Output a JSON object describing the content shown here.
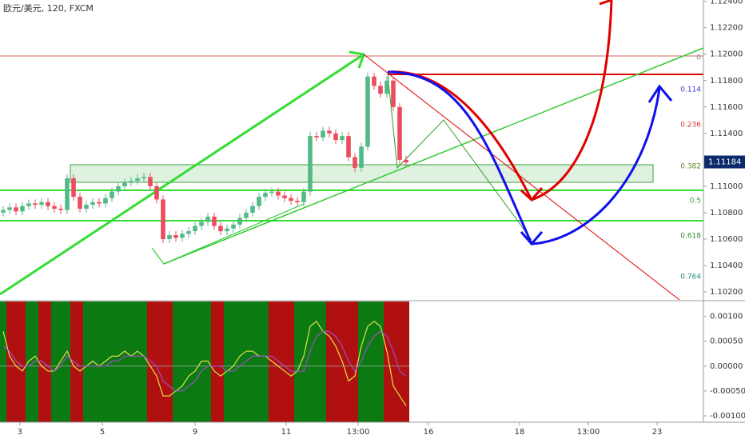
{
  "chart_data": {
    "type": "candlestick",
    "title": "欧元/美元, 120, FXCM",
    "colors": {
      "up": "#53b987",
      "down": "#eb4d5c"
    },
    "open": [
      1.108,
      1.1082,
      1.1084,
      1.1081,
      1.1085,
      1.1087,
      1.1086,
      1.1088,
      1.1085,
      1.1083,
      1.1082,
      1.1106,
      1.1092,
      1.1083,
      1.1086,
      1.1088,
      1.1087,
      1.1091,
      1.1096,
      1.11,
      1.1103,
      1.1104,
      1.1106,
      1.1107,
      1.11,
      1.109,
      1.106,
      1.1063,
      1.1061,
      1.1064,
      1.1066,
      1.107,
      1.1073,
      1.1077,
      1.107,
      1.1066,
      1.1068,
      1.1071,
      1.1076,
      1.108,
      1.1085,
      1.1092,
      1.1095,
      1.1096,
      1.1093,
      1.1091,
      1.1089,
      1.1088,
      1.1096,
      1.1138,
      1.1137,
      1.1142,
      1.114,
      1.1135,
      1.1138,
      1.1122,
      1.1114,
      1.113,
      1.1183,
      1.1176,
      1.117,
      1.118,
      1.116,
      1.112
    ],
    "high": [
      1.1085,
      1.1087,
      1.1087,
      1.1088,
      1.109,
      1.109,
      1.1091,
      1.1091,
      1.1088,
      1.1086,
      1.1109,
      1.1109,
      1.1095,
      1.1089,
      1.1091,
      1.1091,
      1.1094,
      1.1099,
      1.1103,
      1.1106,
      1.1107,
      1.1109,
      1.111,
      1.111,
      1.1103,
      1.1093,
      1.1066,
      1.1066,
      1.1067,
      1.1069,
      1.1073,
      1.1076,
      1.108,
      1.108,
      1.1073,
      1.1071,
      1.1074,
      1.1079,
      1.1083,
      1.1088,
      1.1095,
      1.1098,
      1.1099,
      1.1099,
      1.1096,
      1.1094,
      1.1092,
      1.1099,
      1.1141,
      1.1141,
      1.1145,
      1.1145,
      1.1143,
      1.1141,
      1.1141,
      1.1125,
      1.1133,
      1.1186,
      1.1186,
      1.1179,
      1.1183,
      1.1183,
      1.1163,
      1.1123
    ],
    "low": [
      1.1077,
      1.1079,
      1.1078,
      1.1078,
      1.1082,
      1.1083,
      1.1083,
      1.1082,
      1.108,
      1.1079,
      1.1079,
      1.1089,
      1.108,
      1.108,
      1.1083,
      1.1084,
      1.1084,
      1.1088,
      1.1093,
      1.1097,
      1.11,
      1.1101,
      1.1103,
      1.1097,
      1.1087,
      1.1057,
      1.1057,
      1.1058,
      1.1058,
      1.1061,
      1.1063,
      1.1067,
      1.107,
      1.1067,
      1.1063,
      1.1063,
      1.1065,
      1.1068,
      1.1073,
      1.1077,
      1.1082,
      1.1089,
      1.1092,
      1.109,
      1.1088,
      1.1086,
      1.1085,
      1.1085,
      1.1093,
      1.1134,
      1.1134,
      1.1137,
      1.1132,
      1.1132,
      1.1119,
      1.1111,
      1.1111,
      1.1127,
      1.1173,
      1.1167,
      1.1167,
      1.1157,
      1.1117,
      1.1115
    ],
    "close": [
      1.1082,
      1.1084,
      1.1081,
      1.1085,
      1.1087,
      1.1086,
      1.1088,
      1.1085,
      1.1083,
      1.1082,
      1.1106,
      1.1092,
      1.1083,
      1.1086,
      1.1088,
      1.1087,
      1.1091,
      1.1096,
      1.11,
      1.1103,
      1.1104,
      1.1106,
      1.1107,
      1.11,
      1.109,
      1.106,
      1.1063,
      1.1061,
      1.1064,
      1.1066,
      1.107,
      1.1073,
      1.1077,
      1.107,
      1.1066,
      1.1068,
      1.1071,
      1.1076,
      1.108,
      1.1085,
      1.1092,
      1.1095,
      1.1096,
      1.1093,
      1.1091,
      1.1089,
      1.1088,
      1.1096,
      1.1138,
      1.1137,
      1.1142,
      1.114,
      1.1135,
      1.1138,
      1.1122,
      1.1114,
      1.113,
      1.1183,
      1.1176,
      1.117,
      1.118,
      1.116,
      1.112,
      1.1118
    ],
    "xlim": [
      -0.5,
      109.5
    ],
    "xticks": [
      {
        "value": 2.6,
        "label": "3"
      },
      {
        "value": 15.5,
        "label": "5"
      },
      {
        "value": 30,
        "label": "9"
      },
      {
        "value": 44.25,
        "label": "11"
      },
      {
        "value": 55.5,
        "label": "13:00"
      },
      {
        "value": 66.5,
        "label": "16"
      },
      {
        "value": 80.75,
        "label": "18"
      },
      {
        "value": 91.5,
        "label": "13:00"
      },
      {
        "value": 102.25,
        "label": "23"
      }
    ],
    "ylim": [
      1.1014,
      1.1241
    ],
    "yticks": [
      {
        "value": 1.124,
        "label": "1.12400"
      },
      {
        "value": 1.122,
        "label": "1.12200"
      },
      {
        "value": 1.12,
        "label": "1.12000"
      },
      {
        "value": 1.118,
        "label": "1.11800"
      },
      {
        "value": 1.116,
        "label": "1.11600"
      },
      {
        "value": 1.114,
        "label": "1.11400"
      },
      {
        "value": 1.112,
        "label": "1.11200"
      },
      {
        "value": 1.11,
        "label": "1.11000"
      },
      {
        "value": 1.108,
        "label": "1.10800"
      },
      {
        "value": 1.106,
        "label": "1.10600"
      },
      {
        "value": 1.104,
        "label": "1.10400"
      },
      {
        "value": 1.102,
        "label": "1.10200"
      }
    ],
    "last_price": 1.11184,
    "fib_labels": [
      "0",
      "0.114",
      "0.236",
      "0.382",
      "0.5",
      "0.618",
      "0.764"
    ],
    "oscillator": {
      "ylim": [
        -0.00108,
        0.0013
      ],
      "yticks": [
        {
          "value": 0.001,
          "label": "0.00100"
        },
        {
          "value": 0.0005,
          "label": "0.00050"
        },
        {
          "value": 0,
          "label": "0.00000"
        },
        {
          "value": -0.0005,
          "label": "-0.00050"
        },
        {
          "value": -0.001,
          "label": "-0.00100"
        }
      ],
      "series": [
        {
          "color": "#e0e04a",
          "values": [
            0.0007,
            0.0002,
            0.0,
            -0.0001,
            0.0001,
            0.0002,
            0.0,
            -0.0001,
            -0.0001,
            0.0001,
            0.0003,
            0.0,
            -0.0001,
            0.0,
            0.0001,
            0.0,
            0.0001,
            0.0002,
            0.0002,
            0.0003,
            0.0002,
            0.0003,
            0.0002,
            0.0,
            -0.0002,
            -0.0006,
            -0.0006,
            -0.0005,
            -0.0004,
            -0.0002,
            -0.0001,
            0.0001,
            0.0001,
            -0.0001,
            -0.0002,
            -0.0001,
            0.0,
            0.0002,
            0.0003,
            0.0003,
            0.0002,
            0.0002,
            0.0001,
            0.0,
            -0.0001,
            -0.0002,
            -0.0001,
            0.0002,
            0.0008,
            0.0009,
            0.0007,
            0.0006,
            0.0004,
            0.0001,
            -0.0003,
            -0.0002,
            0.0004,
            0.0008,
            0.0009,
            0.0008,
            0.0003,
            -0.0004,
            -0.0006,
            -0.0008
          ]
        },
        {
          "color": "#9c4fc0",
          "values": [
            0.0004,
            0.0003,
            0.0001,
            0.0,
            0.0,
            0.0001,
            0.0001,
            0.0,
            -0.0001,
            0.0,
            0.0002,
            0.0001,
            0.0,
            0.0,
            0.0,
            0.0,
            0.0,
            0.0001,
            0.0001,
            0.0002,
            0.0002,
            0.0002,
            0.0002,
            0.0001,
            0.0,
            -0.0003,
            -0.0004,
            -0.0005,
            -0.0005,
            -0.0004,
            -0.0003,
            -0.0001,
            0.0,
            0.0,
            0.0,
            -0.0001,
            -0.0001,
            0.0,
            0.0001,
            0.0002,
            0.0002,
            0.0002,
            0.0002,
            0.0001,
            0.0,
            -0.0001,
            -0.0001,
            -0.0001,
            0.0003,
            0.0006,
            0.0007,
            0.0007,
            0.0006,
            0.0004,
            0.0001,
            -0.0001,
            0.0001,
            0.0004,
            0.0006,
            0.0007,
            0.0006,
            0.0003,
            -0.0001,
            -0.0002
          ]
        }
      ]
    }
  }
}
